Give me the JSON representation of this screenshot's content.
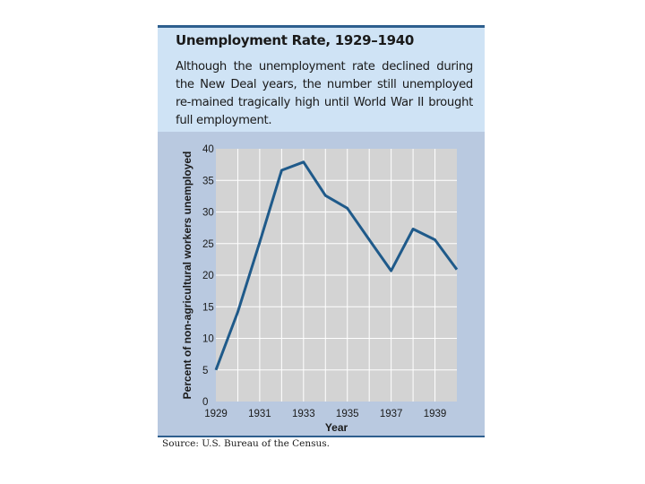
{
  "source": "Source: U.S. Bureau of the Census.",
  "colors": {
    "panel": "#b9c9e0",
    "caption": "#cfe3f5",
    "plot": "#d3d3d3",
    "line": "#1f5a8a",
    "border": "#2e5f8e"
  },
  "chart_data": {
    "type": "line",
    "title": "Unemployment Rate, 1929–1940",
    "subtitle": "Although the unemployment rate declined during the New Deal years, the number still unemployed re-mained tragically high until World War II brought full employment.",
    "xlabel": "Year",
    "ylabel": "Percent of non-agricultural workers unemployed",
    "x": [
      1929,
      1930,
      1931,
      1932,
      1933,
      1934,
      1935,
      1936,
      1937,
      1938,
      1939,
      1940
    ],
    "values": [
      5,
      14.2,
      25.2,
      36.6,
      37.9,
      32.6,
      30.6,
      25.6,
      20.7,
      27.3,
      25.6,
      20.9
    ],
    "xticks": [
      "1929",
      "1931",
      "1933",
      "1935",
      "1937",
      "1939"
    ],
    "yticks": [
      "0",
      "5",
      "10",
      "15",
      "20",
      "25",
      "30",
      "35",
      "40"
    ],
    "xlim": [
      1929,
      1940
    ],
    "ylim": [
      0,
      40
    ],
    "grid": true
  }
}
